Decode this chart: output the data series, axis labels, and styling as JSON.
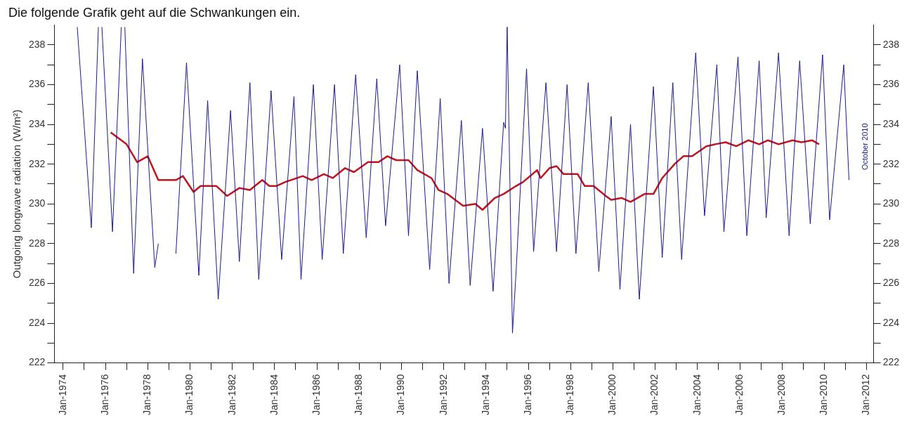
{
  "chart_data": {
    "type": "line",
    "title": "Die folgende Grafik geht auf die Schwankungen ein.",
    "ylabel": "Outgoing longwave radiation (W/m²)",
    "annotations": [
      "October 2010"
    ],
    "xlim": [
      "1973-08",
      "2012-05"
    ],
    "xticks": [
      {
        "value": "1974-01",
        "label": "Jan-1974"
      },
      {
        "value": "1975-01",
        "label": null
      },
      {
        "value": "1976-01",
        "label": "Jan-1976"
      },
      {
        "value": "1977-01",
        "label": null
      },
      {
        "value": "1978-01",
        "label": "Jan-1978"
      },
      {
        "value": "1979-01",
        "label": null
      },
      {
        "value": "1980-01",
        "label": "Jan-1980"
      },
      {
        "value": "1981-01",
        "label": null
      },
      {
        "value": "1982-01",
        "label": "Jan-1982"
      },
      {
        "value": "1983-01",
        "label": null
      },
      {
        "value": "1984-01",
        "label": "Jan-1984"
      },
      {
        "value": "1985-01",
        "label": null
      },
      {
        "value": "1986-01",
        "label": "Jan-1986"
      },
      {
        "value": "1987-01",
        "label": null
      },
      {
        "value": "1988-01",
        "label": "Jan-1988"
      },
      {
        "value": "1989-01",
        "label": null
      },
      {
        "value": "1990-01",
        "label": "Jan-1990"
      },
      {
        "value": "1991-01",
        "label": null
      },
      {
        "value": "1992-01",
        "label": "Jan-1992"
      },
      {
        "value": "1993-01",
        "label": null
      },
      {
        "value": "1994-01",
        "label": "Jan-1994"
      },
      {
        "value": "1995-01",
        "label": null
      },
      {
        "value": "1996-01",
        "label": "Jan-1996"
      },
      {
        "value": "1997-01",
        "label": null
      },
      {
        "value": "1998-01",
        "label": "Jan-1998"
      },
      {
        "value": "1999-01",
        "label": null
      },
      {
        "value": "2000-01",
        "label": "Jan-2000"
      },
      {
        "value": "2001-01",
        "label": null
      },
      {
        "value": "2002-01",
        "label": "Jan-2002"
      },
      {
        "value": "2003-01",
        "label": null
      },
      {
        "value": "2004-01",
        "label": "Jan-2004"
      },
      {
        "value": "2005-01",
        "label": null
      },
      {
        "value": "2006-01",
        "label": "Jan-2006"
      },
      {
        "value": "2007-01",
        "label": null
      },
      {
        "value": "2008-01",
        "label": "Jan-2008"
      },
      {
        "value": "2009-01",
        "label": null
      },
      {
        "value": "2010-01",
        "label": "Jan-2010"
      },
      {
        "value": "2011-01",
        "label": null
      },
      {
        "value": "2012-01",
        "label": "Jan-2012"
      }
    ],
    "ylim": [
      222,
      239
    ],
    "yticks": [
      222,
      {
        "value": 223,
        "label": null
      },
      224,
      {
        "value": 225,
        "label": null
      },
      226,
      {
        "value": 227,
        "label": null
      },
      228,
      {
        "value": 229,
        "label": null
      },
      230,
      {
        "value": 231,
        "label": null
      },
      232,
      {
        "value": 233,
        "label": null
      },
      234,
      {
        "value": 235,
        "label": null
      },
      236,
      {
        "value": 237,
        "label": null
      },
      238
    ],
    "y2lim": [
      222,
      239
    ],
    "y2ticks": [
      222,
      {
        "value": 223,
        "label": null
      },
      224,
      {
        "value": 225,
        "label": null
      },
      226,
      {
        "value": 227,
        "label": null
      },
      228,
      {
        "value": 229,
        "label": null
      },
      230,
      {
        "value": 231,
        "label": null
      },
      232,
      {
        "value": 233,
        "label": null
      },
      234,
      {
        "value": 235,
        "label": null
      },
      236,
      {
        "value": 237,
        "label": null
      },
      238
    ],
    "grid": false,
    "legend": false,
    "marker": "none",
    "line_style": "solid",
    "series": [
      {
        "color": "#1c1c8a",
        "x": [
          "1974-09",
          "1975-05",
          "1975-09",
          "1975-10",
          "1975-11",
          "1976-05",
          "1976-10",
          "1976-11",
          "1976-12",
          "1977-05",
          "1977-10",
          "1978-05",
          "1978-07",
          "1978-12",
          "1979-05",
          "1979-11",
          "1980-06",
          "1980-11",
          "1981-05",
          "1981-12",
          "1982-05",
          "1982-11",
          "1983-04",
          "1983-11",
          "1984-05",
          "1984-12",
          "1985-04",
          "1985-11",
          "1986-04",
          "1986-11",
          "1987-04",
          "1987-11",
          "1988-05",
          "1988-11",
          "1989-04",
          "1989-12",
          "1990-05",
          "1990-10",
          "1991-05",
          "1991-11",
          "1992-04",
          "1992-11",
          "1993-04",
          "1993-11",
          "1994-05",
          "1994-11",
          "1994-12",
          "1995-01",
          "1995-02",
          "1995-04",
          "1995-06",
          "1995-12",
          "1996-04",
          "1996-11",
          "1997-05",
          "1997-11",
          "1998-04",
          "1998-11",
          "1999-05",
          "1999-12",
          "2000-05",
          "2000-11",
          "2001-04",
          "2001-12",
          "2002-05",
          "2002-11",
          "2003-04",
          "2003-12",
          "2004-05",
          "2004-12",
          "2005-04",
          "2005-12",
          "2006-05",
          "2006-12",
          "2007-04",
          "2007-11",
          "2008-05",
          "2008-11",
          "2009-05",
          "2009-12",
          "2010-04",
          "2010-12",
          "2011-03"
        ],
        "values": [
          238.9,
          228.8,
          238.9,
          null,
          238.9,
          228.6,
          238.9,
          null,
          238.9,
          226.5,
          237.3,
          226.8,
          228.0,
          null,
          227.5,
          237.1,
          226.4,
          235.2,
          225.2,
          234.7,
          227.1,
          236.1,
          226.2,
          235.7,
          227.2,
          235.4,
          226.2,
          236.0,
          227.2,
          236.0,
          227.5,
          236.5,
          228.3,
          236.3,
          228.9,
          237.0,
          228.4,
          236.7,
          226.7,
          235.3,
          226.0,
          234.2,
          225.9,
          233.8,
          225.6,
          234.1,
          233.8,
          238.9,
          233.9,
          223.5,
          226.5,
          236.8,
          227.6,
          236.1,
          227.6,
          236.0,
          227.5,
          236.1,
          226.6,
          234.4,
          225.7,
          234.0,
          225.2,
          235.9,
          227.3,
          236.1,
          227.2,
          237.6,
          229.4,
          237.0,
          228.6,
          237.4,
          228.4,
          237.2,
          229.3,
          237.6,
          228.4,
          237.2,
          229.0,
          237.5,
          229.2,
          237.0,
          231.2
        ]
      },
      {
        "color": "#c0141e",
        "x": [
          "1976-04",
          "1977-01",
          "1977-07",
          "1978-01",
          "1978-02",
          "1978-07",
          "1979-05",
          "1979-09",
          "1980-03",
          "1980-07",
          "1981-04",
          "1981-10",
          "1982-05",
          "1982-11",
          "1983-06",
          "1983-10",
          "1984-02",
          "1984-07",
          "1985-05",
          "1985-10",
          "1986-05",
          "1986-10",
          "1987-05",
          "1987-10",
          "1988-06",
          "1988-12",
          "1989-05",
          "1989-10",
          "1990-05",
          "1990-10",
          "1991-06",
          "1991-10",
          "1992-03",
          "1992-12",
          "1993-07",
          "1993-11",
          "1994-06",
          "1994-11",
          "1995-06",
          "1995-10",
          "1996-06",
          "1996-08",
          "1997-01",
          "1997-05",
          "1997-09",
          "1998-05",
          "1998-09",
          "1999-02",
          "1999-09",
          "1999-12",
          "2000-06",
          "2000-11",
          "2001-07",
          "2001-12",
          "2002-05",
          "2002-12",
          "2003-05",
          "2003-10",
          "2004-06",
          "2004-11",
          "2005-05",
          "2005-11",
          "2006-06",
          "2006-12",
          "2007-05",
          "2007-11",
          "2008-07",
          "2008-12",
          "2009-06",
          "2009-10"
        ],
        "values": [
          233.6,
          233.0,
          232.1,
          232.4,
          232.2,
          231.2,
          231.2,
          231.4,
          230.6,
          230.9,
          230.9,
          230.4,
          230.8,
          230.7,
          231.2,
          230.9,
          230.9,
          231.1,
          231.4,
          231.2,
          231.5,
          231.3,
          231.8,
          231.6,
          232.1,
          232.1,
          232.4,
          232.2,
          232.2,
          231.7,
          231.3,
          230.7,
          230.5,
          229.9,
          230.0,
          229.7,
          230.3,
          230.5,
          230.9,
          231.1,
          231.7,
          231.3,
          231.8,
          231.9,
          231.5,
          231.5,
          230.9,
          230.9,
          230.4,
          230.2,
          230.3,
          230.1,
          230.5,
          230.5,
          231.3,
          232.0,
          232.4,
          232.4,
          232.9,
          233.0,
          233.1,
          232.9,
          233.2,
          233.0,
          233.2,
          233.0,
          233.2,
          233.1,
          233.2,
          233.0
        ]
      }
    ]
  }
}
